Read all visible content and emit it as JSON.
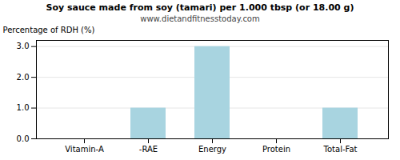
{
  "chart_data": {
    "type": "bar",
    "title": "Soy sauce made from soy (tamari) per 1.000 tbsp (or 18.00 g)",
    "subtitle": "www.dietandfitnesstoday.com",
    "categories": [
      "Vitamin-A",
      "-RAE",
      "Energy",
      "Protein",
      "Total-Fat"
    ],
    "values": [
      0.0,
      1.0,
      3.0,
      0.0,
      1.0
    ],
    "color": "#a8d4e0",
    "ylabel": "Percentage of RDH (%)",
    "ylim": [
      0,
      3.2
    ],
    "yticks": [
      {
        "value": 0.0,
        "label": "0.0"
      },
      {
        "value": 1.0,
        "label": "1.0"
      },
      {
        "value": 2.0,
        "label": "2.0"
      },
      {
        "value": 3.0,
        "label": "3.0"
      }
    ],
    "grid": true
  }
}
